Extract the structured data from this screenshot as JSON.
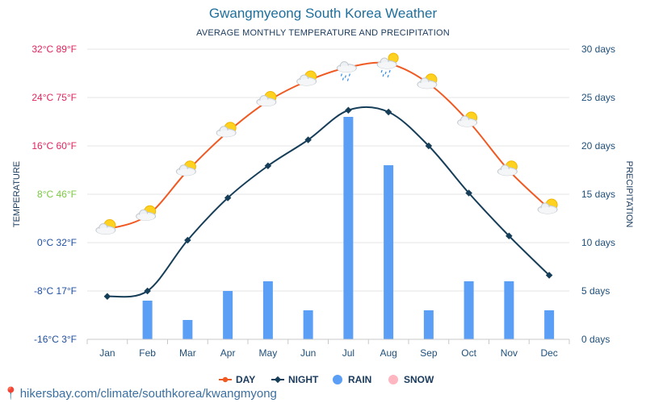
{
  "page": {
    "title": "Gwangmyeong South Korea Weather",
    "subtitle": "AVERAGE MONTHLY TEMPERATURE AND PRECIPITATION",
    "footer": "hikersbay.com/climate/southkorea/kwangmyong"
  },
  "colors": {
    "day": "#f05a22",
    "night": "#163e59",
    "rain": "#5b9ef6",
    "snow": "#ffb6c1",
    "temp_left_top": "#e0245e",
    "temp_left_mid": "#7ac943",
    "temp_left_low": "#1f4fa0",
    "right_axis": "#1f4f7a",
    "grid": "#e6e6e6"
  },
  "chart_data": {
    "type": "line",
    "title": "Gwangmyeong South Korea Weather",
    "subtitle": "AVERAGE MONTHLY TEMPERATURE AND PRECIPITATION",
    "categories": [
      "Jan",
      "Feb",
      "Mar",
      "Apr",
      "May",
      "Jun",
      "Jul",
      "Aug",
      "Sep",
      "Oct",
      "Nov",
      "Dec"
    ],
    "y_left": {
      "label": "TEMPERATURE",
      "range": [
        -16,
        32
      ],
      "ticks": [
        {
          "value": 32,
          "label": "32°C 89°F"
        },
        {
          "value": 24,
          "label": "24°C 75°F"
        },
        {
          "value": 16,
          "label": "16°C 60°F"
        },
        {
          "value": 8,
          "label": "8°C 46°F"
        },
        {
          "value": 0,
          "label": "0°C 32°F"
        },
        {
          "value": -8,
          "label": "-8°C 17°F"
        },
        {
          "value": -16,
          "label": "-16°C 3°F"
        }
      ]
    },
    "y_right": {
      "label": "PRECIPITATION",
      "range": [
        0,
        30
      ],
      "ticks": [
        {
          "value": 30,
          "label": "30 days"
        },
        {
          "value": 25,
          "label": "25 days"
        },
        {
          "value": 20,
          "label": "20 days"
        },
        {
          "value": 15,
          "label": "15 days"
        },
        {
          "value": 10,
          "label": "10 days"
        },
        {
          "value": 5,
          "label": "5 days"
        },
        {
          "value": 0,
          "label": "0 days"
        }
      ]
    },
    "series": [
      {
        "name": "DAY",
        "kind": "line",
        "axis": "left",
        "values": [
          2.2,
          4.5,
          11.9,
          18.3,
          23.4,
          26.8,
          29.0,
          29.6,
          26.3,
          20.0,
          11.9,
          5.6
        ]
      },
      {
        "name": "NIGHT",
        "kind": "line",
        "axis": "left",
        "values": [
          -8.9,
          -8.0,
          0.4,
          7.4,
          12.7,
          17.0,
          21.9,
          21.6,
          16.0,
          8.2,
          1.1,
          -5.4
        ]
      },
      {
        "name": "RAIN",
        "kind": "bar",
        "axis": "right",
        "values": [
          0,
          4,
          2,
          5,
          6,
          3,
          23,
          18,
          3,
          6,
          6,
          3
        ]
      },
      {
        "name": "SNOW",
        "kind": "bar",
        "axis": "right",
        "values": [
          0,
          0,
          0,
          0,
          0,
          0,
          0,
          0,
          0,
          0,
          0,
          0
        ]
      }
    ],
    "weather_icons": [
      "partly-sunny-icon",
      "partly-sunny-icon",
      "partly-sunny-icon",
      "partly-sunny-icon",
      "partly-sunny-icon",
      "partly-sunny-icon",
      "rain-cloud-icon",
      "sun-rain-cloud-icon",
      "partly-sunny-icon",
      "partly-sunny-icon",
      "partly-sunny-icon",
      "partly-sunny-icon"
    ],
    "legend_position": "bottom",
    "grid": true
  }
}
